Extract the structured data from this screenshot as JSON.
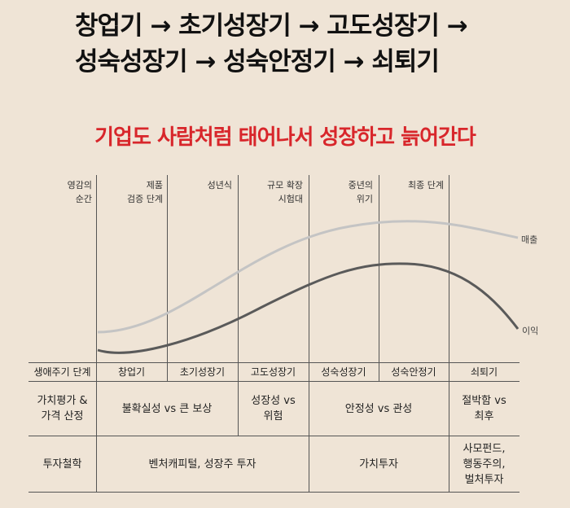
{
  "title": {
    "line1": "창업기 → 초기성장기 → 고도성장기 →",
    "line2": "성숙성장기 → 성숙안정기 → 쇠퇴기"
  },
  "subtitle": "기업도 사람처럼 태어나서 성장하고 늙어간다",
  "stages": [
    {
      "line1": "영감의",
      "line2": "순간"
    },
    {
      "line1": "제품",
      "line2": "검증 단계"
    },
    {
      "line1": "성년식",
      "line2": ""
    },
    {
      "line1": "규모 확장",
      "line2": "시험대"
    },
    {
      "line1": "중년의",
      "line2": "위기"
    },
    {
      "line1": "최종 단계",
      "line2": ""
    }
  ],
  "curves": {
    "revenue": "매출",
    "profit": "이익"
  },
  "lifecycle": {
    "label": "생애주기 단계",
    "phases": [
      "창업기",
      "초기성장기",
      "고도성장기",
      "성숙성장기",
      "성숙안정기",
      "쇠퇴기"
    ]
  },
  "valuation": {
    "label_line1": "가치평가 &",
    "label_line2": "가격 산정",
    "uncertainty": "불확실성 vs 큰 보상",
    "growth_line1": "성장성 vs",
    "growth_line2": "위험",
    "stability": "안정성 vs 관성",
    "desperation_line1": "절박함 vs",
    "desperation_line2": "최후"
  },
  "philosophy": {
    "label": "투자철학",
    "venture": "벤처캐피털, 성장주 투자",
    "value": "가치투자",
    "vulture_line1": "사모펀드,",
    "vulture_line2": "행동주의,",
    "vulture_line3": "벌처투자"
  },
  "colors": {
    "background": "#efe4d6",
    "accent": "#d8262b",
    "revenue_curve": "#c4c4c4",
    "profit_curve": "#5a5a5a"
  }
}
